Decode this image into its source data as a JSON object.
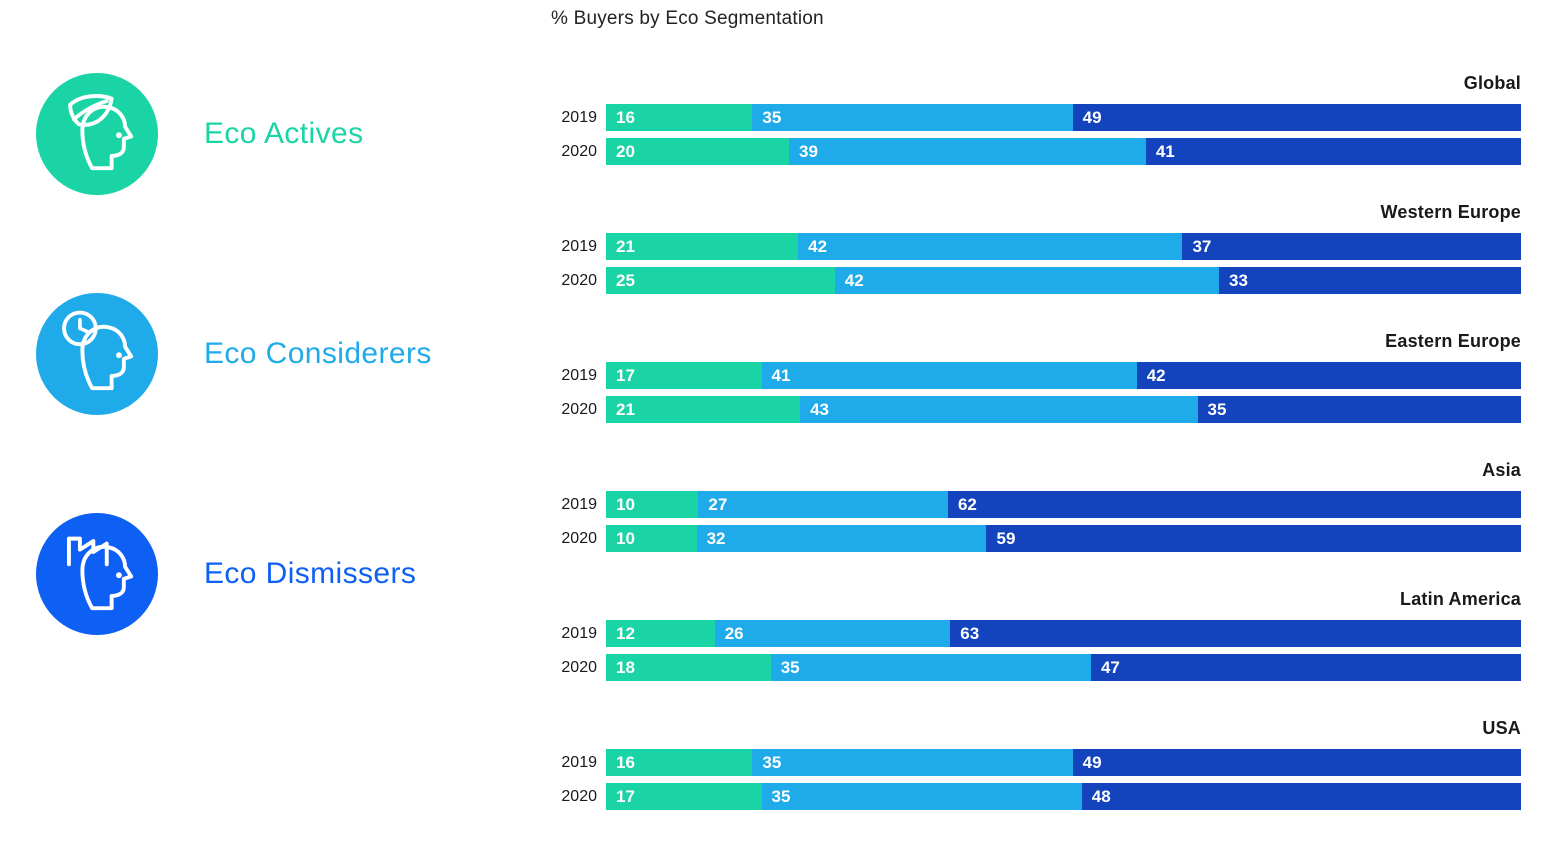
{
  "title": "% Buyers by Eco Segmentation",
  "legend": {
    "items": [
      {
        "label": "Eco Actives",
        "color": "#1BD4A5",
        "icon": "leaf-head-icon"
      },
      {
        "label": "Eco Considerers",
        "color": "#1FAAE9",
        "icon": "clock-head-icon"
      },
      {
        "label": "Eco Dismissers",
        "color": "#0E5FF4",
        "icon": "factory-head-icon"
      }
    ]
  },
  "chart_data": {
    "type": "bar",
    "stacked": true,
    "orientation": "horizontal",
    "unit": "%",
    "title": "% Buyers by Eco Segmentation",
    "series_names": [
      "Eco Actives",
      "Eco Considerers",
      "Eco Dismissers"
    ],
    "series_colors": [
      "#1BD4A5",
      "#1FAAE9",
      "#1343BD"
    ],
    "value_labels_shown": true,
    "legend_position": "left",
    "groups": [
      {
        "region": "Global",
        "rows": [
          {
            "year": "2019",
            "values": [
              16,
              35,
              49
            ]
          },
          {
            "year": "2020",
            "values": [
              20,
              39,
              41
            ]
          }
        ]
      },
      {
        "region": "Western Europe",
        "rows": [
          {
            "year": "2019",
            "values": [
              21,
              42,
              37
            ]
          },
          {
            "year": "2020",
            "values": [
              25,
              42,
              33
            ]
          }
        ]
      },
      {
        "region": "Eastern Europe",
        "rows": [
          {
            "year": "2019",
            "values": [
              17,
              41,
              42
            ]
          },
          {
            "year": "2020",
            "values": [
              21,
              43,
              35
            ]
          }
        ]
      },
      {
        "region": "Asia",
        "rows": [
          {
            "year": "2019",
            "values": [
              10,
              27,
              62
            ]
          },
          {
            "year": "2020",
            "values": [
              10,
              32,
              59
            ]
          }
        ]
      },
      {
        "region": "Latin America",
        "rows": [
          {
            "year": "2019",
            "values": [
              12,
              26,
              63
            ]
          },
          {
            "year": "2020",
            "values": [
              18,
              35,
              47
            ]
          }
        ]
      },
      {
        "region": "USA",
        "rows": [
          {
            "year": "2019",
            "values": [
              16,
              35,
              49
            ]
          },
          {
            "year": "2020",
            "values": [
              17,
              35,
              48
            ]
          }
        ]
      }
    ]
  }
}
